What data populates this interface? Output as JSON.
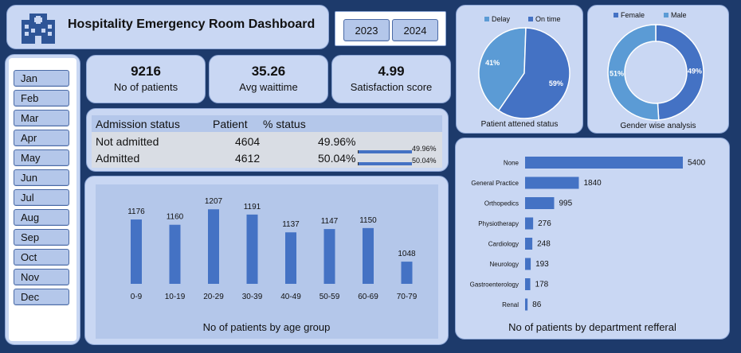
{
  "header": {
    "title": "Hospitality Emergency Room Dashboard",
    "icon": "hospital-icon"
  },
  "years": [
    "2023",
    "2024"
  ],
  "months": [
    "Jan",
    "Feb",
    "Mar",
    "Apr",
    "May",
    "Jun",
    "Jul",
    "Aug",
    "Sep",
    "Oct",
    "Nov",
    "Dec"
  ],
  "kpis": {
    "patients": {
      "value": "9216",
      "label": "No of patients"
    },
    "wait": {
      "value": "35.26",
      "label": "Avg waittime"
    },
    "satisfaction": {
      "value": "4.99",
      "label": "Satisfaction score"
    }
  },
  "admission": {
    "headers": [
      "Admission status",
      "Patient",
      "% status"
    ],
    "rows": [
      {
        "status": "Not admitted",
        "patient": "4604",
        "pct": "49.96%",
        "bar_label": "49.96%",
        "fraction": 0.4996
      },
      {
        "status": "Admitted",
        "patient": "4612",
        "pct": "50.04%",
        "bar_label": "50.04%",
        "fraction": 0.5004
      }
    ]
  },
  "colors": {
    "dark_blue": "#4472c4",
    "light_blue": "#5b9bd5",
    "panel": "#c9d7f3",
    "background": "#1d3a6b"
  },
  "chart_data": [
    {
      "type": "pie",
      "variant": "pie",
      "title": "Patient attened status",
      "legend": "top",
      "slices": [
        {
          "name": "Delay",
          "value": 41,
          "label": "41%",
          "color": "#5b9bd5"
        },
        {
          "name": "On time",
          "value": 59,
          "label": "59%",
          "color": "#4472c4"
        }
      ]
    },
    {
      "type": "pie",
      "variant": "donut",
      "title": "Gender wise analysis",
      "legend": "top",
      "slices": [
        {
          "name": "Female",
          "value": 49,
          "label": "49%",
          "color": "#4472c4"
        },
        {
          "name": "Male",
          "value": 51,
          "label": "51%",
          "color": "#5b9bd5"
        }
      ]
    },
    {
      "type": "bar",
      "title": "No of patients by age group",
      "categories": [
        "0-9",
        "10-19",
        "20-29",
        "30-39",
        "40-49",
        "50-59",
        "60-69",
        "70-79"
      ],
      "values": [
        1176,
        1160,
        1207,
        1191,
        1137,
        1147,
        1150,
        1048
      ],
      "ylim": [
        1000,
        1210
      ],
      "grid": false
    },
    {
      "type": "bar",
      "orientation": "horizontal",
      "title": "No of patients by department refferal",
      "categories": [
        "None",
        "General Practice",
        "Orthopedics",
        "Physiotherapy",
        "Cardiology",
        "Neurology",
        "Gastroenterology",
        "Renal"
      ],
      "values": [
        5400,
        1840,
        995,
        276,
        248,
        193,
        178,
        86
      ],
      "xlim": [
        0,
        5400
      ],
      "grid": false
    }
  ]
}
